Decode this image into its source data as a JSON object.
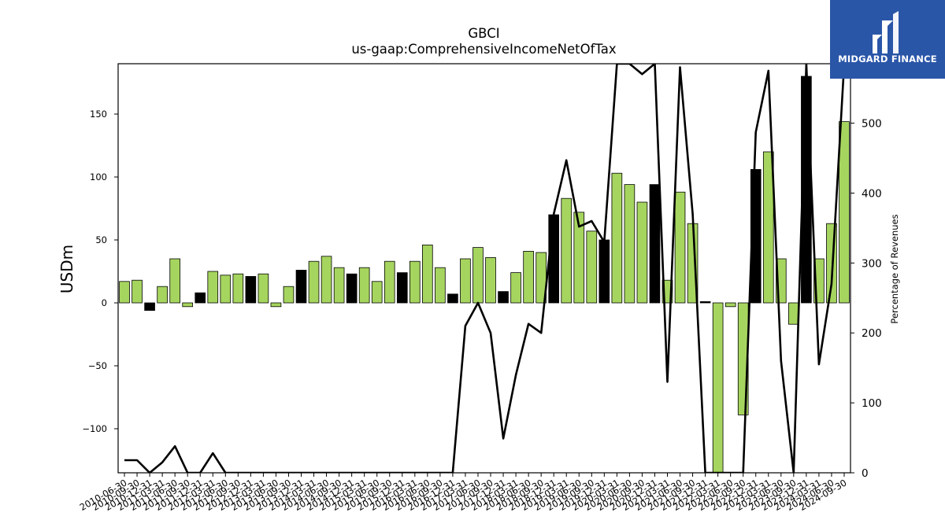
{
  "brand": {
    "name": "MIDGARD FINANCE",
    "bg_color": "#2a56a8"
  },
  "colors": {
    "positive": "#a6d55f",
    "negative": "#000000",
    "line": "#000000"
  },
  "chart_data": {
    "type": "bar",
    "title": "GBCI",
    "subtitle": "us-gaap:ComprehensiveIncomeNetOfTax",
    "ylabel": "USDm",
    "y2label": "Percentage of Revenues",
    "ylim": [
      -135,
      190
    ],
    "y2lim": [
      0,
      585
    ],
    "yticks": [
      -100,
      -50,
      0,
      50,
      100,
      150
    ],
    "y2ticks": [
      0,
      100,
      200,
      300,
      400,
      500
    ],
    "categories": [
      "2010-06-30",
      "2010-09-30",
      "2010-12-31",
      "2011-03-31",
      "2011-06-30",
      "2011-09-30",
      "2011-12-31",
      "2012-03-31",
      "2012-06-30",
      "2012-09-30",
      "2012-12-31",
      "2013-03-31",
      "2013-06-30",
      "2013-09-30",
      "2013-12-31",
      "2014-03-31",
      "2014-06-30",
      "2014-09-30",
      "2014-12-31",
      "2015-03-31",
      "2015-06-30",
      "2015-09-30",
      "2015-12-31",
      "2016-03-31",
      "2016-06-30",
      "2016-09-30",
      "2016-12-31",
      "2017-03-31",
      "2017-06-30",
      "2017-09-30",
      "2017-12-31",
      "2018-03-31",
      "2018-06-30",
      "2018-09-30",
      "2018-12-31",
      "2019-03-31",
      "2019-06-30",
      "2019-09-30",
      "2019-12-31",
      "2020-03-31",
      "2020-06-30",
      "2020-09-30",
      "2020-12-31",
      "2021-03-31",
      "2021-06-30",
      "2021-09-30",
      "2021-12-31",
      "2022-03-31",
      "2022-06-30",
      "2022-09-30",
      "2022-12-31",
      "2023-03-31",
      "2023-06-30",
      "2023-09-30",
      "2023-12-31",
      "2024-03-31",
      "2024-06-30",
      "2024-09-30"
    ],
    "tick_labels": [
      "2010-06-30",
      "2010-09-30",
      "2010-12-31",
      "2011-03-31",
      "2011-06-30",
      "2011-09-30",
      "2011-12-31",
      "2012-03-31",
      "2012-06-30",
      "2012-09-30",
      "2012-12-31",
      "2013-03-31",
      "2013-06-30",
      "2013-09-30",
      "2013-12-31",
      "2014-03-31",
      "2014-06-30",
      "2014-09-30",
      "2014-12-31",
      "2015-03-31",
      "2015-06-30",
      "2015-09-30",
      "2015-12-31",
      "2016-03-31",
      "2016-06-30",
      "2016-09-30",
      "2016-12-31",
      "2017-03-31",
      "2017-06-30",
      "2017-09-30",
      "2017-12-31",
      "2018-03-31",
      "2018-06-30",
      "2018-09-30",
      "2018-12-31",
      "2019-03-31",
      "2019-06-30",
      "2019-09-30",
      "2019-12-31",
      "2020-03-31",
      "2020-06-30",
      "2020-09-30",
      "2020-12-31",
      "2021-03-31",
      "2021-06-30",
      "2021-09-30",
      "2021-12-31",
      "2022-03-31",
      "2022-06-30",
      "2022-09-30",
      "2022-12-31",
      "2023-03-31",
      "2023-06-30",
      "2023-09-30",
      "2023-12-31",
      "2024-03-31",
      "2024-06-30",
      "2024-09-30"
    ],
    "series": [
      {
        "type": "bar",
        "values": [
          17,
          18,
          -6,
          13,
          35,
          -3,
          8,
          25,
          22,
          23,
          21,
          23,
          -3,
          13,
          26,
          33,
          37,
          28,
          23,
          28,
          17,
          33,
          24,
          33,
          46,
          28,
          7,
          35,
          44,
          36,
          9,
          24,
          41,
          40,
          70,
          83,
          72,
          57,
          50,
          103,
          94,
          80,
          94,
          18,
          88,
          63,
          1,
          -135,
          -3,
          -89,
          106,
          120,
          35,
          -17,
          180,
          35,
          63,
          144
        ],
        "highlight": [
          false,
          false,
          true,
          false,
          false,
          false,
          true,
          false,
          false,
          false,
          true,
          false,
          false,
          false,
          true,
          false,
          false,
          false,
          true,
          false,
          false,
          false,
          true,
          false,
          false,
          false,
          true,
          false,
          false,
          false,
          true,
          false,
          false,
          false,
          true,
          false,
          false,
          false,
          true,
          false,
          false,
          false,
          true,
          false,
          false,
          false,
          true,
          false,
          false,
          false,
          true,
          false,
          false,
          false,
          true,
          false,
          false,
          false
        ]
      },
      {
        "type": "line",
        "axis": "y2",
        "values": [
          18,
          18,
          0,
          15,
          38,
          0,
          0,
          28,
          0,
          0,
          0,
          0,
          0,
          0,
          0,
          0,
          0,
          0,
          0,
          0,
          0,
          0,
          0,
          0,
          0,
          0,
          0,
          210,
          243,
          200,
          49,
          140,
          213,
          200,
          370,
          447,
          352,
          360,
          330,
          585,
          585,
          570,
          585,
          130,
          580,
          370,
          0,
          0,
          0,
          0,
          487,
          575,
          160,
          0,
          585,
          155,
          270,
          585
        ]
      }
    ]
  }
}
